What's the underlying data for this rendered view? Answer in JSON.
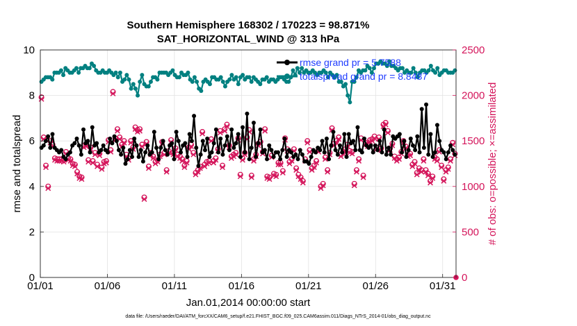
{
  "chart_data": {
    "type": "line",
    "title": "Southern Hemisphere 168302 / 170223 = 98.871%",
    "subtitle": "SAT_HORIZONTAL_WIND @ 313 hPa",
    "xlabel": "Jan.01,2014 00:00:00 start",
    "ylabel_left": "rmse and totalspread",
    "ylabel_right": "# of obs: o=possible; ×=assimilated",
    "x_tick_labels": [
      "01/01",
      "01/06",
      "01/11",
      "01/16",
      "01/21",
      "01/26",
      "01/31"
    ],
    "x_tick_days": [
      0,
      5,
      10,
      15,
      20,
      25,
      30
    ],
    "xlim": [
      0,
      31
    ],
    "ylim_left": [
      0,
      10
    ],
    "ylim_right": [
      0,
      2500
    ],
    "y_ticks_left": [
      "0",
      "2",
      "4",
      "6",
      "8",
      "10"
    ],
    "y_ticks_right": [
      "0",
      "500",
      "1000",
      "1500",
      "2000",
      "2500"
    ],
    "grid": true,
    "legend_position": "top-right",
    "colors": {
      "rmse": "#000000",
      "spread": "#008080",
      "obs": "#d4145a",
      "right_axis": "#d4145a",
      "legend_text": "#1f3cff"
    },
    "series": [
      {
        "name": "rmse",
        "legend": "rmse grand pr = 5.7588",
        "axis": "left",
        "values": [
          5.7,
          5.8,
          6.0,
          6.2,
          5.7,
          6.3,
          5.7,
          5.6,
          5.5,
          5.6,
          5.3,
          5.2,
          5.4,
          5.5,
          5.8,
          5.9,
          6.1,
          5.8,
          5.4,
          6.5,
          5.9,
          6.0,
          5.5,
          6.6,
          5.8,
          5.9,
          5.5,
          5.6,
          5.8,
          5.6,
          5.5,
          6.1,
          5.9,
          6.2,
          6.0,
          5.6,
          5.4,
          5.7,
          5.0,
          5.2,
          5.6,
          5.3,
          6.1,
          5.8,
          5.3,
          5.6,
          5.1,
          5.5,
          5.8,
          5.4,
          5.5,
          6.4,
          5.7,
          5.2,
          5.7,
          6.0,
          5.6,
          5.4,
          5.8,
          5.9,
          5.2,
          6.4,
          6.0,
          5.5,
          5.8,
          5.9,
          5.3,
          6.3,
          6.0,
          7.1,
          5.7,
          4.9,
          5.4,
          6.0,
          5.6,
          6.1,
          5.3,
          5.5,
          5.9,
          6.5,
          5.5,
          6.1,
          5.4,
          5.8,
          6.2,
          5.6,
          6.5,
          5.7,
          5.9,
          6.3,
          5.3,
          6.6,
          5.5,
          7.2,
          5.2,
          5.7,
          6.8,
          5.3,
          5.9,
          6.5,
          5.5,
          5.6,
          5.2,
          5.8,
          5.6,
          5.3,
          5.5,
          5.5,
          5.2,
          5.6,
          6.1,
          5.3,
          5.6,
          5.5,
          5.3,
          5.4,
          5.2,
          5.6,
          5.4,
          5.1,
          5.1,
          5.0,
          5.3,
          5.6,
          5.5,
          5.7,
          5.6,
          6.0,
          5.5,
          6.1,
          5.2,
          5.8,
          6.4,
          5.6,
          5.4,
          5.8,
          5.5,
          6.3,
          5.3,
          6.3,
          5.9,
          6.0,
          5.6,
          6.6,
          5.6,
          5.5,
          6.1,
          5.8,
          5.7,
          5.8,
          5.5,
          5.8,
          5.6,
          6.0,
          5.5,
          6.5,
          5.4,
          5.7,
          5.4,
          6.2,
          6.1,
          6.2,
          6.3,
          5.5,
          6.0,
          5.3,
          5.6,
          6.1,
          5.8,
          5.6,
          6.2,
          5.5,
          7.4,
          5.7,
          7.6,
          5.4,
          6.3,
          5.3,
          5.5,
          6.7,
          6.0,
          5.6,
          5.5,
          5.2,
          5.5,
          5.8,
          5.6,
          5.4
        ]
      },
      {
        "name": "totalspread",
        "legend": "totalspread grand pr = 8.8487",
        "axis": "left",
        "values": [
          8.6,
          8.7,
          8.8,
          8.8,
          8.8,
          8.7,
          9.0,
          9.0,
          9.0,
          9.1,
          8.9,
          9.2,
          9.1,
          9.0,
          9.0,
          9.1,
          9.2,
          9.0,
          9.2,
          9.2,
          9.3,
          9.2,
          9.2,
          9.4,
          9.3,
          9.1,
          9.0,
          9.0,
          9.1,
          9.0,
          9.0,
          9.1,
          9.0,
          8.9,
          9.0,
          8.8,
          9.0,
          8.6,
          8.7,
          8.9,
          8.7,
          8.3,
          8.5,
          8.3,
          8.0,
          8.6,
          8.9,
          8.5,
          8.4,
          8.4,
          8.6,
          8.8,
          8.8,
          8.7,
          9.0,
          9.0,
          9.0,
          9.0,
          8.9,
          9.0,
          9.1,
          8.9,
          8.8,
          8.8,
          9.0,
          8.9,
          8.9,
          9.0,
          8.7,
          8.6,
          8.8,
          8.6,
          8.3,
          8.2,
          8.6,
          8.7,
          8.6,
          8.5,
          8.8,
          8.8,
          8.7,
          8.7,
          8.8,
          8.6,
          8.4,
          8.6,
          8.7,
          8.9,
          8.7,
          8.8,
          8.5,
          8.8,
          8.9,
          8.7,
          8.8,
          8.8,
          8.6,
          8.8,
          8.7,
          8.6,
          8.5,
          8.7,
          8.7,
          8.8,
          8.6,
          8.7,
          8.7,
          8.6,
          8.7,
          8.8,
          8.8,
          8.7,
          8.6,
          8.6,
          8.8,
          9.1,
          8.9,
          9.2,
          9.0,
          9.2,
          9.0,
          9.1,
          9.0,
          9.0,
          9.1,
          9.0,
          8.9,
          9.0,
          9.0,
          9.1,
          9.0,
          8.8,
          9.0,
          8.9,
          8.8,
          8.9,
          8.6,
          8.6,
          8.4,
          8.5,
          8.0,
          7.7,
          8.6,
          8.6,
          8.8,
          9.1,
          9.0,
          9.1,
          9.1,
          9.3,
          9.2,
          9.0,
          9.2,
          9.4,
          9.4,
          9.5,
          9.4,
          9.4,
          9.3,
          9.5,
          9.3,
          9.3,
          9.2,
          9.1,
          9.2,
          9.2,
          9.0,
          9.1,
          9.0,
          9.0,
          9.2,
          9.0,
          8.8,
          9.0,
          9.1,
          9.1,
          9.0,
          9.1,
          9.3,
          9.1,
          9.0,
          9.2,
          8.9,
          9.0,
          9.1,
          9.1,
          9.0,
          9.0,
          9.0,
          9.1
        ]
      },
      {
        "name": "obs_possible",
        "axis": "right",
        "marker": "o",
        "values": [
          1980,
          1540,
          1230,
          1000,
          1500,
          1460,
          1310,
          1300,
          1300,
          1300,
          1290,
          1380,
          1310,
          1300,
          1250,
          1240,
          1160,
          1110,
          1100,
          1450,
          1460,
          1290,
          1430,
          1280,
          1370,
          1240,
          1360,
          1210,
          1270,
          1280,
          1510,
          1400,
          2040,
          1530,
          1630,
          1540,
          1460,
          1500,
          1350,
          1310,
          1500,
          1430,
          1650,
          1620,
          1630,
          1460,
          880,
          1490,
          1220,
          1370,
          1330,
          1270,
          1290,
          1350,
          1490,
          1370,
          1180,
          1390,
          1510,
          1370,
          1420,
          1350,
          1330,
          1300,
          1230,
          1280,
          1430,
          1460,
          1370,
          1150,
          1180,
          1220,
          1600,
          1240,
          1270,
          1280,
          1520,
          1280,
          1310,
          1410,
          1610,
          1230,
          1630,
          1680,
          1450,
          1330,
          1350,
          1370,
          1530,
          1130,
          1310,
          1370,
          1540,
          1620,
          1120,
          1300,
          1350,
          1470,
          1490,
          1380,
          1630,
          1110,
          1100,
          1340,
          1140,
          1130,
          1260,
          1260,
          1170,
          1530,
          1410,
          1270,
          1300,
          1410,
          1200,
          1130,
          1100,
          1060,
          1300,
          1500,
          1400,
          1200,
          1230,
          1280,
          1400,
          1000,
          1030,
          1320,
          1180,
          1370,
          1640,
          1470,
          1500,
          1540,
          1350,
          1380,
          1410,
          1460,
          1390,
          1380,
          1030,
          1180,
          1300,
          1530,
          1120,
          1480,
          1460,
          1510,
          1520,
          1550,
          1430,
          1540,
          1420,
          1680,
          1700,
          1610,
          1420,
          1470,
          1330,
          1300,
          1320,
          1380,
          1500,
          1440,
          1350,
          1360,
          1240,
          1270,
          1150,
          1200,
          1180,
          1300,
          1180,
          1140,
          1060,
          1110,
          1320,
          1300,
          1400,
          1230,
          1080,
          1180,
          1210,
          1300,
          1480,
          1360
        ]
      },
      {
        "name": "obs_assimilated",
        "axis": "right",
        "marker": "x",
        "values": [
          1960,
          1520,
          1210,
          980,
          1480,
          1440,
          1290,
          1280,
          1280,
          1280,
          1270,
          1360,
          1290,
          1280,
          1230,
          1220,
          1140,
          1090,
          1080,
          1430,
          1440,
          1270,
          1410,
          1260,
          1350,
          1220,
          1340,
          1190,
          1250,
          1260,
          1490,
          1380,
          2020,
          1510,
          1610,
          1520,
          1440,
          1480,
          1330,
          1290,
          1480,
          1410,
          1630,
          1600,
          1610,
          1440,
          860,
          1470,
          1200,
          1350,
          1310,
          1250,
          1270,
          1330,
          1470,
          1350,
          1160,
          1370,
          1490,
          1350,
          1400,
          1330,
          1310,
          1280,
          1210,
          1260,
          1410,
          1440,
          1350,
          1130,
          1160,
          1200,
          1580,
          1220,
          1250,
          1260,
          1500,
          1260,
          1290,
          1390,
          1590,
          1210,
          1610,
          1660,
          1430,
          1310,
          1330,
          1350,
          1510,
          1110,
          1290,
          1350,
          1520,
          1600,
          1100,
          1280,
          1330,
          1450,
          1470,
          1360,
          1610,
          1090,
          1080,
          1320,
          1120,
          1110,
          1240,
          1240,
          1150,
          1510,
          1390,
          1250,
          1280,
          1390,
          1180,
          1110,
          1080,
          1040,
          1280,
          1480,
          1380,
          1180,
          1210,
          1260,
          1380,
          980,
          1010,
          1300,
          1160,
          1350,
          1620,
          1450,
          1480,
          1520,
          1330,
          1360,
          1390,
          1440,
          1370,
          1360,
          1010,
          1160,
          1280,
          1510,
          1100,
          1460,
          1440,
          1490,
          1500,
          1530,
          1410,
          1520,
          1400,
          1660,
          1680,
          1590,
          1400,
          1450,
          1310,
          1280,
          1300,
          1360,
          1480,
          1420,
          1330,
          1340,
          1220,
          1250,
          1130,
          1180,
          1160,
          1280,
          1160,
          1120,
          1040,
          1090,
          1300,
          1280,
          1380,
          1210,
          1060,
          1160,
          1190,
          1280,
          1460,
          1340
        ]
      }
    ]
  },
  "footer": {
    "data_file": "data file: /Users/raeder/DAI/ATM_forcXX/CAM6_setup/f.e21.FHIST_BGC.f09_025.CAM6assim.011/Diags_NTrS_2014-01/obs_diag_output.nc"
  }
}
